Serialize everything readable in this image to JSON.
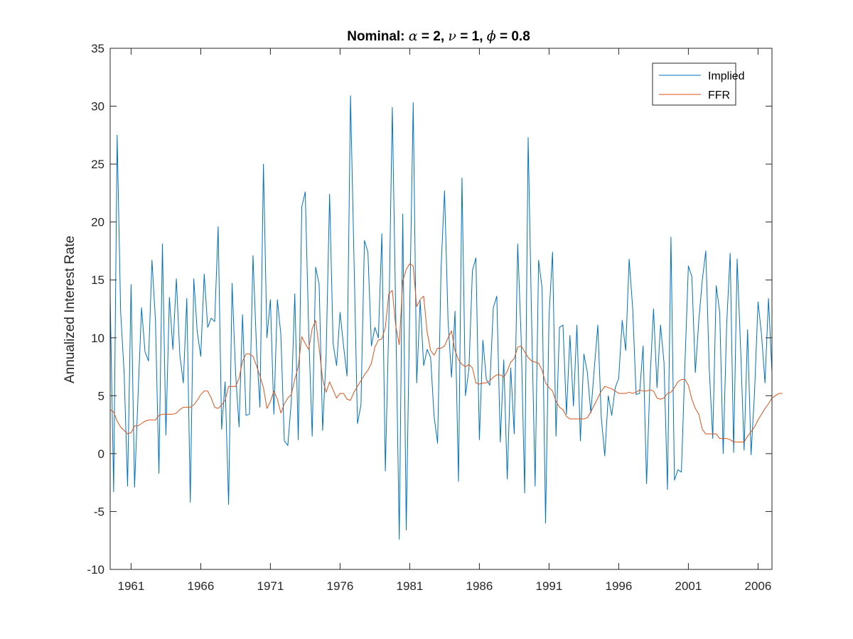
{
  "chart_data": {
    "type": "line",
    "title": {
      "prefix": "Nominal: ",
      "symbol1": "α",
      "part1": " = 2, ",
      "symbol2": "ν",
      "part2": " = 1, ",
      "symbol3": "ϕ",
      "part3": " = 0.8"
    },
    "xlabel": "",
    "ylabel": "Annualized Interest Rate",
    "xlim": [
      1959.5,
      2007.0
    ],
    "ylim": [
      -10,
      35
    ],
    "yticks": [
      -10,
      -5,
      0,
      5,
      10,
      15,
      20,
      25,
      30,
      35
    ],
    "xticks": [
      1961,
      1966,
      1971,
      1976,
      1981,
      1986,
      1991,
      1996,
      2001,
      2006
    ],
    "grid": false,
    "legend_position": "top-right",
    "series": [
      {
        "name": "Implied",
        "color": "#0072BD",
        "x_start": 1959.5,
        "x_step": 0.25,
        "values": [
          13.5,
          -3.3,
          27.5,
          12.3,
          7,
          -2.8,
          14.6,
          -2.9,
          5,
          12.6,
          8.8,
          8,
          16.7,
          11.5,
          -1.7,
          18.1,
          1.6,
          13.5,
          9,
          15.1,
          8.5,
          6.1,
          13.4,
          -4.2,
          15.1,
          10.5,
          8.4,
          15.5,
          10.9,
          11.7,
          11.4,
          19.6,
          2.1,
          6.2,
          -4.4,
          14.7,
          7,
          2.3,
          12,
          3.3,
          3.4,
          17.1,
          9.2,
          4,
          25,
          10,
          13.3,
          3.4,
          13.3,
          10.3,
          1.1,
          0.7,
          4.5,
          13.8,
          1.2,
          21.3,
          22.6,
          10.5,
          1.5,
          16.1,
          14.6,
          2,
          8.5,
          22.4,
          9.5,
          7.6,
          12.2,
          9.3,
          6.7,
          30.9,
          16.8,
          2.6,
          4.2,
          18.4,
          17.4,
          9.3,
          10.9,
          10,
          19,
          -1.5,
          11.3,
          29.9,
          11.7,
          -7.4,
          20.7,
          -6.6,
          12.6,
          30.3,
          6.1,
          13.2,
          7.6,
          9,
          8.3,
          3.2,
          0.9,
          16,
          22.7,
          11.5,
          6.6,
          12.3,
          -2.4,
          23.8,
          5,
          7.3,
          15.8,
          16.9,
          1.2,
          9.8,
          6.4,
          5.9,
          12.6,
          13.6,
          1,
          8.1,
          -2.2,
          7.4,
          1.7,
          18.1,
          9.9,
          -3.4,
          27.3,
          11.4,
          -2.8,
          16.7,
          14.3,
          -6,
          11.9,
          17.4,
          1.5,
          10.9,
          11.1,
          3.4,
          10.2,
          4.1,
          11.1,
          1.1,
          8.6,
          7,
          3.5,
          7.4,
          11.1,
          3.1,
          -0.2,
          5,
          3.3,
          5.7,
          6.5,
          11.5,
          8.9,
          16.8,
          12.6,
          5.1,
          5.2,
          9.3,
          -2.6,
          6.5,
          12.5,
          5.7,
          11.1,
          7.9,
          -3.1,
          18.7,
          -2.3,
          -1.4,
          -1.6,
          7.6,
          16.2,
          15.3,
          7,
          11.5,
          15,
          17.5,
          7.3,
          1.3,
          14.5,
          12.2,
          0,
          11.2,
          17.3,
          0.1,
          16.8,
          9.1,
          0.3,
          10.7,
          -0.1,
          5.3,
          13.1,
          10.3,
          6.1,
          13.4,
          7
        ]
      },
      {
        "name": "FFR",
        "color": "#D95319",
        "x_start": 1959.5,
        "x_step": 0.25,
        "values": [
          3.8,
          3.6,
          2.8,
          2.3,
          2,
          1.7,
          1.8,
          2.4,
          2.4,
          2.6,
          2.8,
          2.9,
          2.9,
          2.9,
          3.3,
          3.4,
          3.4,
          3.4,
          3.4,
          3.5,
          3.8,
          4,
          4,
          4,
          4.2,
          4.6,
          5.1,
          5.4,
          5.4,
          4.8,
          4,
          3.9,
          4.2,
          4.6,
          5.8,
          5.8,
          5.8,
          6.5,
          8,
          8.6,
          8.6,
          8.4,
          7.6,
          6.7,
          5.7,
          3.9,
          4.5,
          5.4,
          4.7,
          3.5,
          4.3,
          4.8,
          5.1,
          6.4,
          7.5,
          10.1,
          9.5,
          9,
          10.8,
          11.5,
          9.1,
          6.4,
          5.3,
          6.2,
          5.5,
          4.8,
          5.2,
          5.2,
          4.7,
          4.6,
          5.3,
          5.8,
          6.3,
          6.8,
          7.2,
          7.8,
          9.2,
          9.8,
          9.9,
          10.9,
          13.8,
          14.1,
          11,
          9.4,
          14.9,
          15.9,
          16.4,
          16.2,
          12.7,
          13.3,
          13.6,
          10.5,
          8.9,
          8.5,
          9.1,
          9.1,
          9.3,
          10,
          10.6,
          8.9,
          8.1,
          7.7,
          7.5,
          7.7,
          7.4,
          6.1,
          6,
          6.1,
          6.1,
          6.3,
          6.6,
          6.8,
          6.8,
          6.6,
          7.1,
          7.9,
          8.2,
          9.2,
          9.3,
          8.8,
          8.3,
          8,
          7.9,
          7.8,
          7.2,
          6.1,
          5.7,
          5.4,
          4.5,
          4,
          3.8,
          3.2,
          3,
          3,
          3,
          3,
          3,
          3.1,
          3.6,
          4.2,
          4.8,
          5.4,
          5.8,
          5.7,
          5.6,
          5.4,
          5.2,
          5.2,
          5.2,
          5.3,
          5.2,
          5.3,
          5.5,
          5.4,
          5.4,
          5.5,
          5.4,
          4.8,
          4.7,
          4.8,
          5.2,
          5.3,
          5.7,
          6.2,
          6.4,
          6.4,
          5.9,
          4.7,
          3.9,
          3.4,
          2.1,
          1.7,
          1.7,
          1.7,
          1.7,
          1.3,
          1.3,
          1.3,
          1.2,
          1,
          1,
          1,
          1,
          1.5,
          1.9,
          2.3,
          2.9,
          3.4,
          3.9,
          4.3,
          4.8,
          5,
          5.2,
          5.2
        ]
      }
    ]
  }
}
